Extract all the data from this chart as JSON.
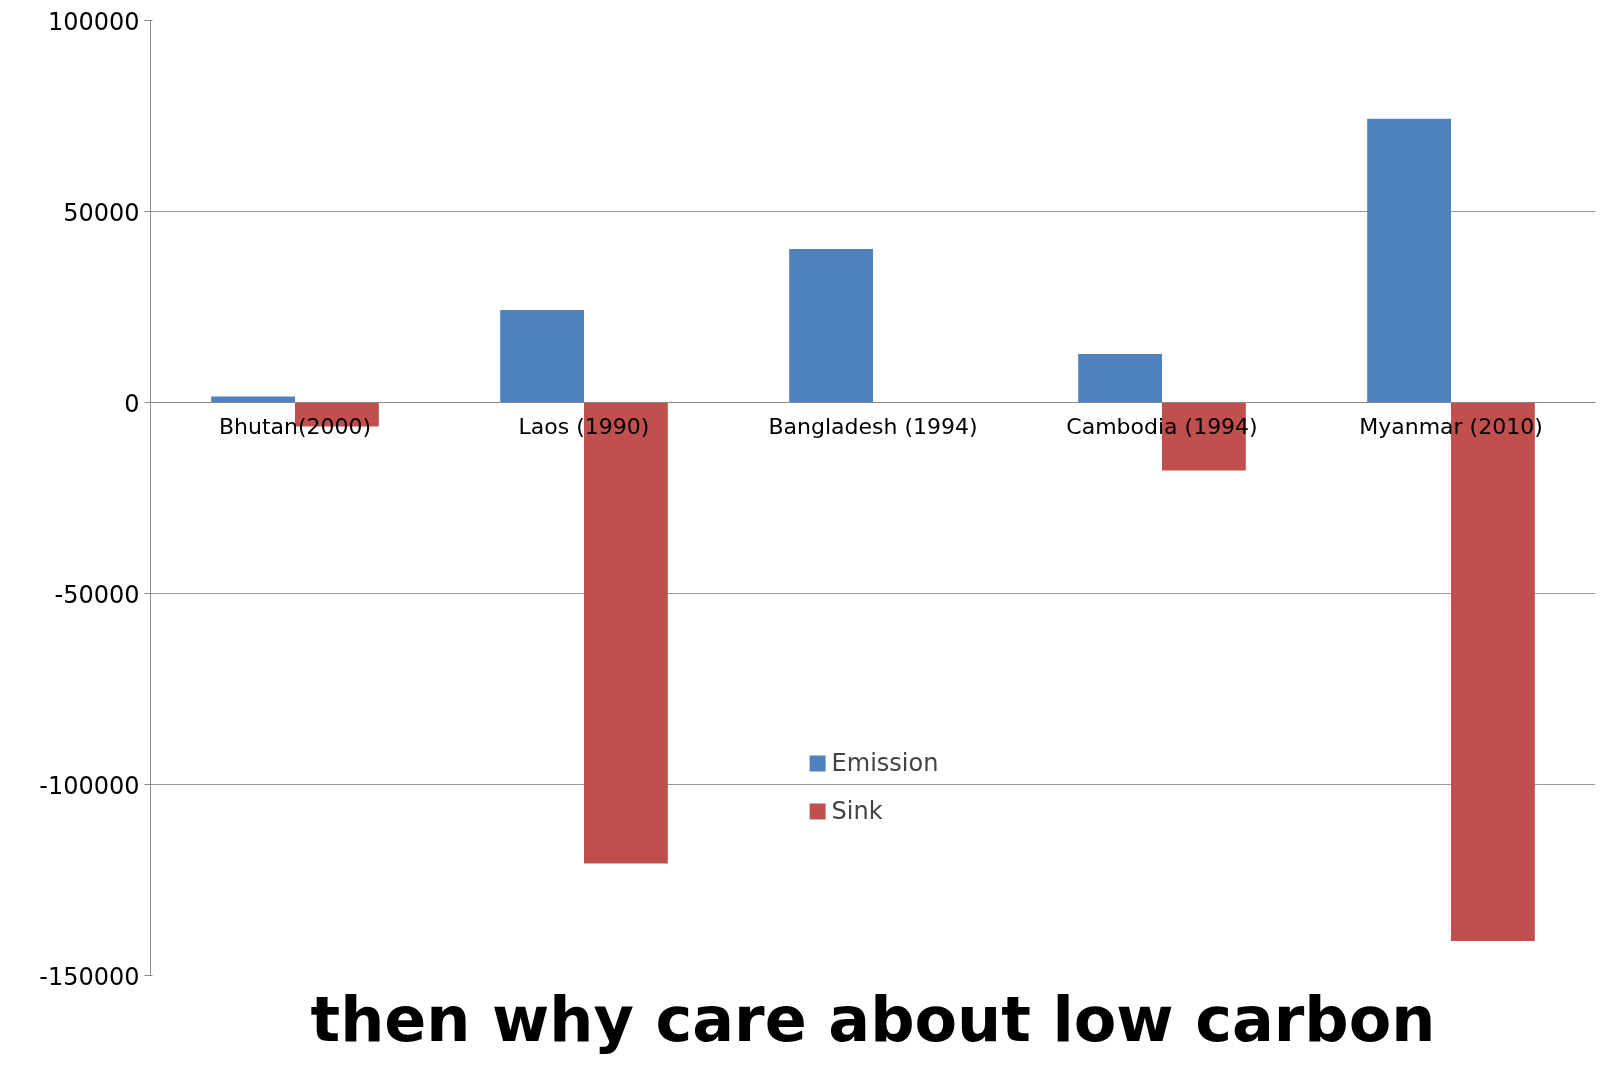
{
  "chart_data": {
    "type": "bar",
    "categories": [
      "Bhutan(2000)",
      "Laos (1990)",
      "Bangladesh (1994)",
      "Cambodia (1994)",
      "Myanmar (2010)"
    ],
    "series": [
      {
        "name": "Emission",
        "color": "#4f81bd",
        "values": [
          1600,
          24200,
          40200,
          12700,
          74300
        ]
      },
      {
        "name": "Sink",
        "color": "#c0504d",
        "values": [
          -6300,
          -120700,
          null,
          -17800,
          -141000
        ]
      }
    ],
    "ylim": [
      -150000,
      100000
    ],
    "yticks": [
      -150000,
      -100000,
      -50000,
      0,
      50000,
      100000
    ],
    "grid": "y",
    "legend": "bottom",
    "annotations": [
      "then why care about low carbon"
    ]
  }
}
